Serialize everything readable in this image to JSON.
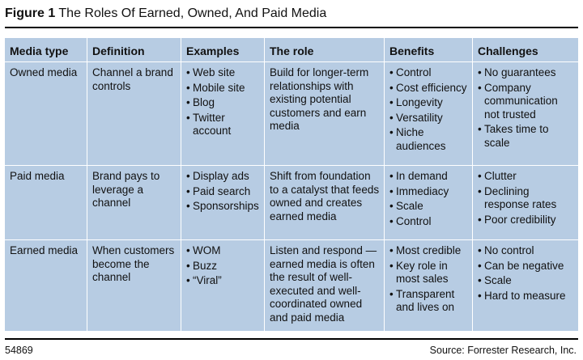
{
  "figure": {
    "label": "Figure 1",
    "title": "The Roles Of Earned, Owned, And Paid Media"
  },
  "table": {
    "headers": [
      "Media type",
      "Definition",
      "Examples",
      "The role",
      "Benefits",
      "Challenges"
    ],
    "rows": [
      {
        "media_type": "Owned media",
        "definition": "Channel a brand controls",
        "examples": [
          "Web site",
          "Mobile site",
          "Blog",
          "Twitter account"
        ],
        "role": "Build for longer-term relationships with existing potential customers and earn media",
        "benefits": [
          "Control",
          "Cost efficiency",
          "Longevity",
          "Versatility",
          "Niche audiences"
        ],
        "challenges": [
          "No guarantees",
          "Company communication not trusted",
          "Takes time to scale"
        ]
      },
      {
        "media_type": "Paid media",
        "definition": "Brand pays to leverage a channel",
        "examples": [
          "Display ads",
          "Paid search",
          "Sponsorships"
        ],
        "role": "Shift from foundation to a catalyst that feeds owned and creates earned media",
        "benefits": [
          "In demand",
          "Immediacy",
          "Scale",
          "Control"
        ],
        "challenges": [
          "Clutter",
          "Declining response rates",
          "Poor credibility"
        ]
      },
      {
        "media_type": "Earned media",
        "definition": "When customers become the channel",
        "examples": [
          "WOM",
          "Buzz",
          "“Viral”"
        ],
        "role": "Listen and respond — earned media is often the result of well-executed and well-coordinated owned and paid media",
        "benefits": [
          "Most credible",
          "Key role in most sales",
          "Transparent and lives on"
        ],
        "challenges": [
          "No control",
          "Can be negative",
          "Scale",
          "Hard to measure"
        ]
      }
    ]
  },
  "footer": {
    "id": "54869",
    "source": "Source: Forrester Research, Inc."
  }
}
